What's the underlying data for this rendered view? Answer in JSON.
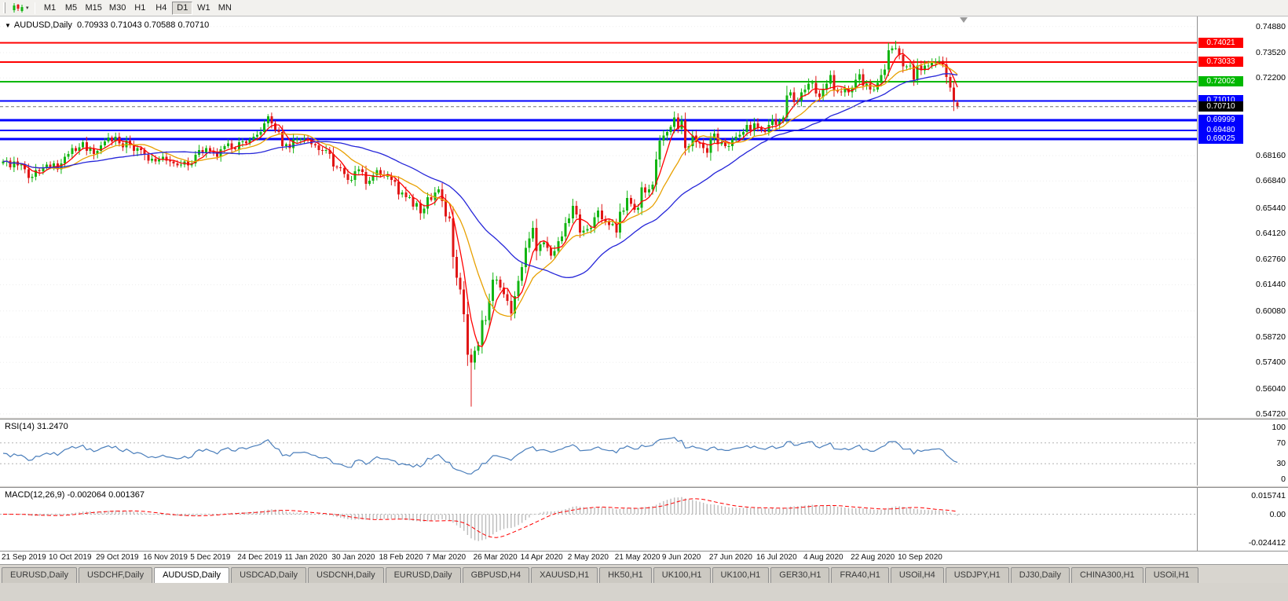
{
  "icons": {
    "chart_menu": "▼",
    "chart_type_caret": "▾"
  },
  "toolbar": {
    "chart_type_icon": "candlestick-chart-icon",
    "timeframes": [
      "M1",
      "M5",
      "M15",
      "M30",
      "H1",
      "H4",
      "D1",
      "W1",
      "MN"
    ],
    "active_timeframe": "D1"
  },
  "chart": {
    "symbol_period": "AUDUSD,Daily",
    "ohlc": "0.70933 0.71043 0.70588 0.70710",
    "bid": "0.70710"
  },
  "chart_data": {
    "type": "candlestick",
    "symbol": "AUDUSD",
    "timeframe": "Daily",
    "price_max": 0.754,
    "price_min": 0.5455,
    "x_start": 4,
    "candle_spacing": 4.62,
    "candle_width": 3,
    "wick_seed": 12,
    "up_color": "#12b512",
    "down_color": "#e01616",
    "first_open": 0.6775,
    "closes": [
      0.6785,
      0.679,
      0.6755,
      0.6785,
      0.6765,
      0.677,
      0.6745,
      0.67,
      0.6705,
      0.674,
      0.6735,
      0.6755,
      0.677,
      0.6755,
      0.6775,
      0.6745,
      0.6775,
      0.681,
      0.6825,
      0.6855,
      0.684,
      0.686,
      0.6885,
      0.684,
      0.6855,
      0.6825,
      0.684,
      0.687,
      0.689,
      0.691,
      0.689,
      0.6915,
      0.688,
      0.686,
      0.6895,
      0.687,
      0.684,
      0.6855,
      0.6845,
      0.682,
      0.679,
      0.68,
      0.6785,
      0.6795,
      0.681,
      0.679,
      0.6785,
      0.6775,
      0.6765,
      0.677,
      0.6785,
      0.6765,
      0.6775,
      0.682,
      0.6845,
      0.683,
      0.6855,
      0.684,
      0.683,
      0.681,
      0.685,
      0.6865,
      0.688,
      0.6855,
      0.685,
      0.6885,
      0.689,
      0.688,
      0.69,
      0.6915,
      0.6925,
      0.694,
      0.6985,
      0.702,
      0.6985,
      0.695,
      0.694,
      0.6865,
      0.6875,
      0.6855,
      0.69,
      0.69,
      0.69,
      0.6905,
      0.6895,
      0.6875,
      0.687,
      0.6845,
      0.684,
      0.6845,
      0.6825,
      0.676,
      0.6755,
      0.675,
      0.672,
      0.669,
      0.669,
      0.6735,
      0.6745,
      0.673,
      0.667,
      0.6685,
      0.6715,
      0.674,
      0.6715,
      0.671,
      0.671,
      0.669,
      0.668,
      0.6615,
      0.6625,
      0.66,
      0.66,
      0.655,
      0.657,
      0.6515,
      0.654,
      0.66,
      0.6585,
      0.6625,
      0.664,
      0.658,
      0.65,
      0.649,
      0.629,
      0.618,
      0.612,
      0.599,
      0.578,
      0.574,
      0.58,
      0.583,
      0.596,
      0.596,
      0.606,
      0.617,
      0.617,
      0.613,
      0.6095,
      0.606,
      0.5995,
      0.6085,
      0.6165,
      0.6235,
      0.6335,
      0.6385,
      0.644,
      0.632,
      0.6355,
      0.6365,
      0.6335,
      0.6295,
      0.632,
      0.637,
      0.6395,
      0.6465,
      0.649,
      0.6555,
      0.651,
      0.6415,
      0.6425,
      0.6435,
      0.644,
      0.6495,
      0.653,
      0.6485,
      0.647,
      0.6455,
      0.646,
      0.6415,
      0.6525,
      0.653,
      0.6595,
      0.6565,
      0.6535,
      0.6545,
      0.665,
      0.6625,
      0.664,
      0.6665,
      0.6795,
      0.6895,
      0.692,
      0.694,
      0.6965,
      0.7015,
      0.6955,
      0.7,
      0.6855,
      0.6865,
      0.692,
      0.6885,
      0.688,
      0.6855,
      0.683,
      0.6905,
      0.693,
      0.6875,
      0.6885,
      0.6865,
      0.6865,
      0.69,
      0.6915,
      0.6925,
      0.694,
      0.6975,
      0.6945,
      0.6985,
      0.696,
      0.695,
      0.694,
      0.6975,
      0.7005,
      0.6975,
      0.6995,
      0.7015,
      0.713,
      0.7145,
      0.7095,
      0.71,
      0.7145,
      0.716,
      0.719,
      0.7195,
      0.714,
      0.712,
      0.716,
      0.719,
      0.7235,
      0.7155,
      0.715,
      0.7145,
      0.7165,
      0.7145,
      0.717,
      0.721,
      0.724,
      0.718,
      0.719,
      0.716,
      0.716,
      0.7195,
      0.7235,
      0.7265,
      0.7365,
      0.7375,
      0.7375,
      0.734,
      0.728,
      0.728,
      0.7285,
      0.721,
      0.7285,
      0.726,
      0.7285,
      0.7285,
      0.73,
      0.7305,
      0.731,
      0.729,
      0.7225,
      0.717,
      0.7105,
      0.7071
    ],
    "candle_overrides": {
      "73": {
        "high": 0.7032
      },
      "129": {
        "low": 0.551
      },
      "246": {
        "high": 0.7414
      },
      "262": {
        "low": 0.7048
      },
      "263": {
        "open": 0.70933,
        "high": 0.71043,
        "low": 0.70588,
        "close": 0.7071
      }
    },
    "moving_averages": [
      {
        "period": 5,
        "color": "#ff0000"
      },
      {
        "period": 13,
        "color": "#e8a000"
      },
      {
        "period": 34,
        "color": "#2626d9"
      }
    ],
    "hlines": [
      {
        "price": 0.74021,
        "label": "0.74021",
        "color": "#ff0000",
        "width": 2
      },
      {
        "price": 0.73033,
        "label": "0.73033",
        "color": "#ff0000",
        "width": 2
      },
      {
        "price": 0.72002,
        "label": "0.72002",
        "color": "#00b800",
        "width": 2
      },
      {
        "price": 0.7101,
        "label": "0.71010",
        "color": "#0000ff",
        "width": 2
      },
      {
        "price": 0.69999,
        "label": "0.69999",
        "color": "#0000ff",
        "width": 3
      },
      {
        "price": 0.6948,
        "label": "0.69480",
        "color": "#0000ff",
        "width": 2
      },
      {
        "price": 0.69025,
        "label": "0.69025",
        "color": "#0000ff",
        "width": 3
      }
    ],
    "bid_line": {
      "price": 0.7071,
      "label": "0.70710",
      "color": "#000000"
    },
    "y_ticks": [
      "0.74880",
      "0.73520",
      "0.72200",
      "0.68160",
      "0.66840",
      "0.65440",
      "0.64120",
      "0.62760",
      "0.61440",
      "0.60080",
      "0.58720",
      "0.57400",
      "0.56040",
      "0.54720"
    ],
    "x_labels": [
      "21 Sep 2019",
      "10 Oct 2019",
      "29 Oct 2019",
      "16 Nov 2019",
      "5 Dec 2019",
      "24 Dec 2019",
      "11 Jan 2020",
      "30 Jan 2020",
      "18 Feb 2020",
      "7 Mar 2020",
      "26 Mar 2020",
      "14 Apr 2020",
      "2 May 2020",
      "21 May 2020",
      "9 Jun 2020",
      "27 Jun 2020",
      "16 Jul 2020",
      "4 Aug 2020",
      "22 Aug 2020",
      "10 Sep 2020"
    ],
    "x_label_step": 13,
    "rsi": {
      "name": "RSI(14)",
      "value": "31.2470",
      "period": 14,
      "color": "#4a7ebb",
      "levels": [
        70,
        30
      ],
      "axis": [
        {
          "label": "100",
          "value": 100
        },
        {
          "label": "70",
          "value": 70
        },
        {
          "label": "30",
          "value": 30
        },
        {
          "label": "0",
          "value": 0
        }
      ]
    },
    "macd": {
      "name": "MACD(12,26,9)",
      "value": "-0.002064 0.001367",
      "fast": 12,
      "slow": 26,
      "signal": 9,
      "hist_color": "#bcbcbc",
      "signal_color": "#ff0000",
      "vmax": 0.015741,
      "vmin": -0.024412,
      "axis": [
        {
          "label": "0.015741",
          "value": 0.015741
        },
        {
          "label": "0.00",
          "value": 0
        },
        {
          "label": "-0.024412",
          "value": -0.024412
        }
      ]
    }
  },
  "tabbar": {
    "active_index": 2,
    "tabs": [
      "EURUSD,Daily",
      "USDCHF,Daily",
      "AUDUSD,Daily",
      "USDCAD,Daily",
      "USDCNH,Daily",
      "EURUSD,Daily",
      "GBPUSD,H4",
      "XAUUSD,H1",
      "HK50,H1",
      "UK100,H1",
      "UK100,H1",
      "GER30,H1",
      "FRA40,H1",
      "USOil,H4",
      "USDJPY,H1",
      "DJ30,Daily",
      "CHINA300,H1",
      "USOil,H1"
    ]
  }
}
